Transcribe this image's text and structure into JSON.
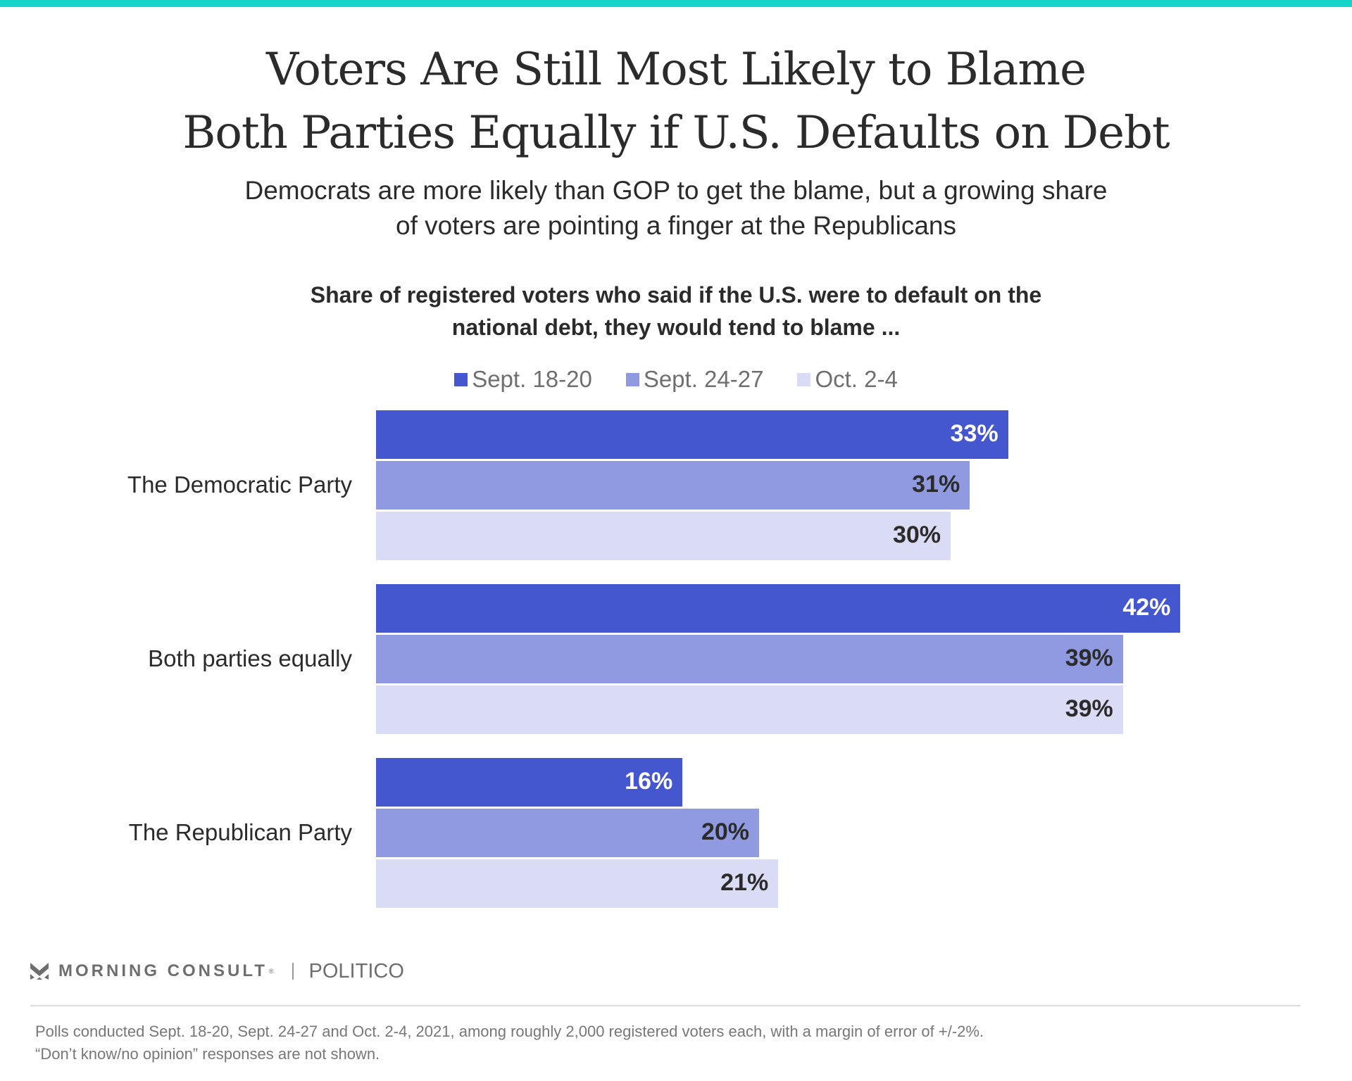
{
  "colors": {
    "topbar": "#14d3c8",
    "series": [
      "#4557cf",
      "#8f9ae1",
      "#dadcf5"
    ],
    "label_on_dark": "#ffffff",
    "label_on_light": "#2b2b2b"
  },
  "header": {
    "title_lines": [
      "Voters Are Still Most Likely to Blame",
      "Both Parties Equally if U.S. Defaults on Debt"
    ],
    "subtitle_lines": [
      "Democrats are more likely than GOP to get the blame, but a growing share",
      "of voters are pointing a finger at the Republicans"
    ],
    "chart_heading_lines": [
      "Share of registered voters who said if the U.S. were to default on the",
      "national debt, they would tend to blame ..."
    ]
  },
  "chart_data": {
    "type": "bar",
    "orientation": "horizontal",
    "title": "Voters Are Still Most Likely to Blame Both Parties Equally if U.S. Defaults on Debt",
    "subtitle": "Democrats are more likely than GOP to get the blame, but a growing share of voters are pointing a finger at the Republicans",
    "ylabel": "Share of registered voters who said if the U.S. were to default on the national debt, they would tend to blame ...",
    "xlabel": "",
    "categories": [
      "The Democratic Party",
      "Both parties equally",
      "The Republican Party"
    ],
    "series": [
      {
        "name": "Sept. 18-20",
        "values": [
          33,
          42,
          16
        ]
      },
      {
        "name": "Sept. 24-27",
        "values": [
          31,
          39,
          20
        ]
      },
      {
        "name": "Oct. 2-4",
        "values": [
          30,
          39,
          21
        ]
      }
    ],
    "value_suffix": "%",
    "xlim": [
      0,
      50
    ],
    "grid": false,
    "legend": "top-center"
  },
  "footer": {
    "brand": "MORNING CONSULT",
    "brand_mark": "®",
    "partner": "POLITICO",
    "notes": [
      "Polls conducted Sept. 18-20, Sept. 24-27 and Oct. 2-4, 2021, among roughly 2,000 registered voters each, with a margin of error of +/-2%.",
      "“Don’t know/no opinion” responses are not shown."
    ]
  }
}
